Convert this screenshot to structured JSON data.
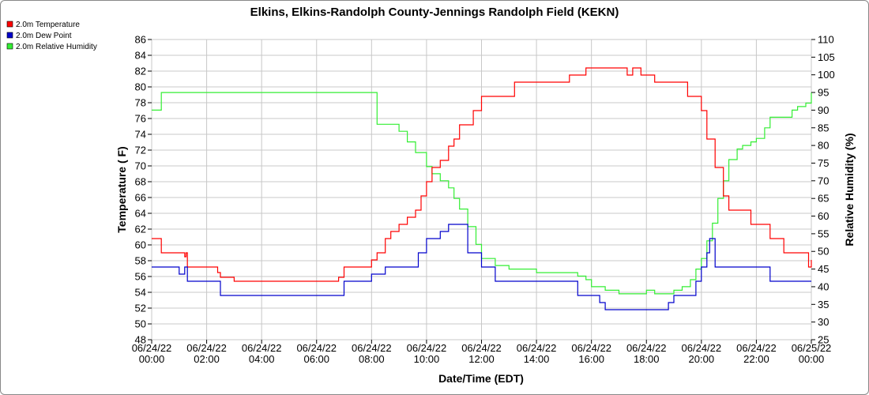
{
  "chart_data": {
    "type": "line",
    "title": "Elkins, Elkins-Randolph County-Jennings Randolph Field (KEKN)",
    "xlabel": "Date/Time (EDT)",
    "ylabel_left": "Temperature ( F)",
    "ylabel_right": "Relative Humidity (%)",
    "ylim_left": [
      48,
      86
    ],
    "yticks_left": [
      "48",
      "50",
      "52",
      "54",
      "56",
      "58",
      "60",
      "62",
      "64",
      "66",
      "68",
      "70",
      "72",
      "74",
      "76",
      "78",
      "80",
      "82",
      "84",
      "86"
    ],
    "ylim_right": [
      25,
      110
    ],
    "yticks_right": [
      "25",
      "30",
      "35",
      "40",
      "45",
      "50",
      "55",
      "60",
      "65",
      "70",
      "75",
      "80",
      "85",
      "90",
      "95",
      "100",
      "105",
      "110"
    ],
    "xlim_hours": [
      0,
      24
    ],
    "xticks": [
      {
        "date": "06/24/22",
        "time": "00:00"
      },
      {
        "date": "06/24/22",
        "time": "02:00"
      },
      {
        "date": "06/24/22",
        "time": "04:00"
      },
      {
        "date": "06/24/22",
        "time": "06:00"
      },
      {
        "date": "06/24/22",
        "time": "08:00"
      },
      {
        "date": "06/24/22",
        "time": "10:00"
      },
      {
        "date": "06/24/22",
        "time": "12:00"
      },
      {
        "date": "06/24/22",
        "time": "14:00"
      },
      {
        "date": "06/24/22",
        "time": "16:00"
      },
      {
        "date": "06/24/22",
        "time": "18:00"
      },
      {
        "date": "06/24/22",
        "time": "20:00"
      },
      {
        "date": "06/24/22",
        "time": "22:00"
      },
      {
        "date": "06/25/22",
        "time": "00:00"
      }
    ],
    "grid": true,
    "legend_position": "top-left",
    "series": [
      {
        "name": "2.0m Temperature",
        "color": "#ff0000",
        "axis": "left",
        "x": [
          0,
          0.3,
          0.35,
          1,
          1.2,
          1.25,
          1.3,
          1.4,
          1.5,
          2,
          2.4,
          2.5,
          2.7,
          3,
          3.5,
          4,
          4.5,
          5,
          5.5,
          6,
          6.5,
          6.8,
          7,
          7.5,
          7.8,
          8,
          8.2,
          8.5,
          8.7,
          9,
          9.3,
          9.6,
          9.8,
          10,
          10.2,
          10.5,
          10.8,
          11,
          11.2,
          11.5,
          11.7,
          12,
          12.5,
          13,
          13.2,
          13.5,
          14,
          14.5,
          15,
          15.2,
          15.5,
          15.8,
          16,
          16.3,
          16.5,
          17,
          17.3,
          17.5,
          17.8,
          18,
          18.3,
          18.5,
          19,
          19.5,
          19.8,
          20,
          20.2,
          20.5,
          20.8,
          21,
          21.5,
          21.8,
          22,
          22.5,
          22.8,
          23,
          23.5,
          23.9,
          24
        ],
        "y": [
          60.8,
          60.8,
          59,
          59,
          58.5,
          59,
          57.2,
          57.2,
          57.2,
          57.2,
          56.5,
          55.9,
          55.9,
          55.4,
          55.4,
          55.4,
          55.4,
          55.4,
          55.4,
          55.4,
          55.4,
          55.9,
          57.2,
          57.2,
          57.2,
          58.1,
          59,
          60.8,
          61.7,
          62.6,
          63.5,
          64.4,
          66.2,
          68,
          69.8,
          70.7,
          72.5,
          73.4,
          75.2,
          75.2,
          77,
          78.8,
          78.8,
          78.8,
          80.6,
          80.6,
          80.6,
          80.6,
          80.6,
          81.5,
          81.5,
          82.4,
          82.4,
          82.4,
          82.4,
          82.4,
          81.5,
          82.4,
          81.5,
          81.5,
          80.6,
          80.6,
          80.6,
          78.8,
          78.8,
          77,
          73.4,
          69.8,
          66.2,
          64.4,
          64.4,
          62.6,
          62.6,
          60.8,
          60.8,
          59,
          59,
          57.2,
          58.1
        ]
      },
      {
        "name": "2.0m Dew Point",
        "color": "#0000cc",
        "axis": "left",
        "x": [
          0,
          0.9,
          1,
          1.2,
          1.3,
          1.5,
          2,
          2.4,
          2.5,
          3,
          3.5,
          4,
          4.5,
          5,
          5.5,
          6,
          6.5,
          7,
          7.5,
          7.8,
          8,
          8.5,
          9,
          9.5,
          9.7,
          10,
          10.3,
          10.5,
          10.8,
          11,
          11.2,
          11.5,
          12,
          12.5,
          13,
          13.5,
          14,
          14.5,
          15,
          15.5,
          15.8,
          16,
          16.3,
          16.5,
          17,
          17.3,
          17.5,
          17.8,
          18,
          18.3,
          18.5,
          18.8,
          19,
          19.5,
          19.8,
          20,
          20.2,
          20.3,
          20.5,
          21,
          21.5,
          22,
          22.5,
          23,
          23.5,
          24
        ],
        "y": [
          57.2,
          57.2,
          56.3,
          57.2,
          55.4,
          55.4,
          55.4,
          55.4,
          53.6,
          53.6,
          53.6,
          53.6,
          53.6,
          53.6,
          53.6,
          53.6,
          53.6,
          55.4,
          55.4,
          55.4,
          56.3,
          57.2,
          57.2,
          57.2,
          59,
          60.8,
          60.8,
          61.7,
          62.6,
          62.6,
          62.6,
          59,
          57.2,
          55.4,
          55.4,
          55.4,
          55.4,
          55.4,
          55.4,
          53.6,
          53.6,
          53.6,
          52.7,
          51.8,
          51.8,
          51.8,
          51.8,
          51.8,
          51.8,
          51.8,
          51.8,
          52.7,
          53.6,
          53.6,
          55.4,
          57.2,
          59,
          60.8,
          57.2,
          57.2,
          57.2,
          57.2,
          55.4,
          55.4,
          55.4,
          55.4
        ]
      },
      {
        "name": "2.0m Relative Humidity",
        "color": "#33ee33",
        "axis": "right",
        "x": [
          0,
          0.3,
          0.35,
          1,
          1.5,
          2,
          2.5,
          3,
          3.5,
          4,
          4.5,
          5,
          5.5,
          6,
          6.5,
          7,
          7.5,
          7.8,
          8,
          8.2,
          8.5,
          8.8,
          9,
          9.3,
          9.6,
          9.8,
          10,
          10.2,
          10.5,
          10.8,
          11,
          11.2,
          11.5,
          11.8,
          12,
          12.5,
          13,
          13.5,
          14,
          14.5,
          15,
          15.5,
          15.8,
          16,
          16.5,
          17,
          17.5,
          18,
          18.3,
          18.5,
          18.8,
          19,
          19.3,
          19.6,
          19.8,
          20,
          20.2,
          20.4,
          20.6,
          20.8,
          21,
          21.3,
          21.5,
          21.8,
          22,
          22.3,
          22.5,
          23,
          23.3,
          23.5,
          23.8,
          24
        ],
        "y": [
          90,
          90,
          95,
          95,
          95,
          95,
          95,
          95,
          95,
          95,
          95,
          95,
          95,
          95,
          95,
          95,
          95,
          95,
          95,
          86,
          86,
          86,
          84,
          81,
          78,
          78,
          74,
          72,
          70,
          68,
          65,
          62,
          57,
          52,
          48,
          46,
          45,
          45,
          44,
          44,
          44,
          43,
          42,
          40,
          39,
          38,
          38,
          39,
          38,
          38,
          38,
          39,
          40,
          42,
          45,
          48,
          53,
          58,
          65,
          70,
          76,
          79,
          80,
          81,
          82,
          85,
          88,
          88,
          90,
          91,
          92,
          95
        ]
      }
    ]
  }
}
